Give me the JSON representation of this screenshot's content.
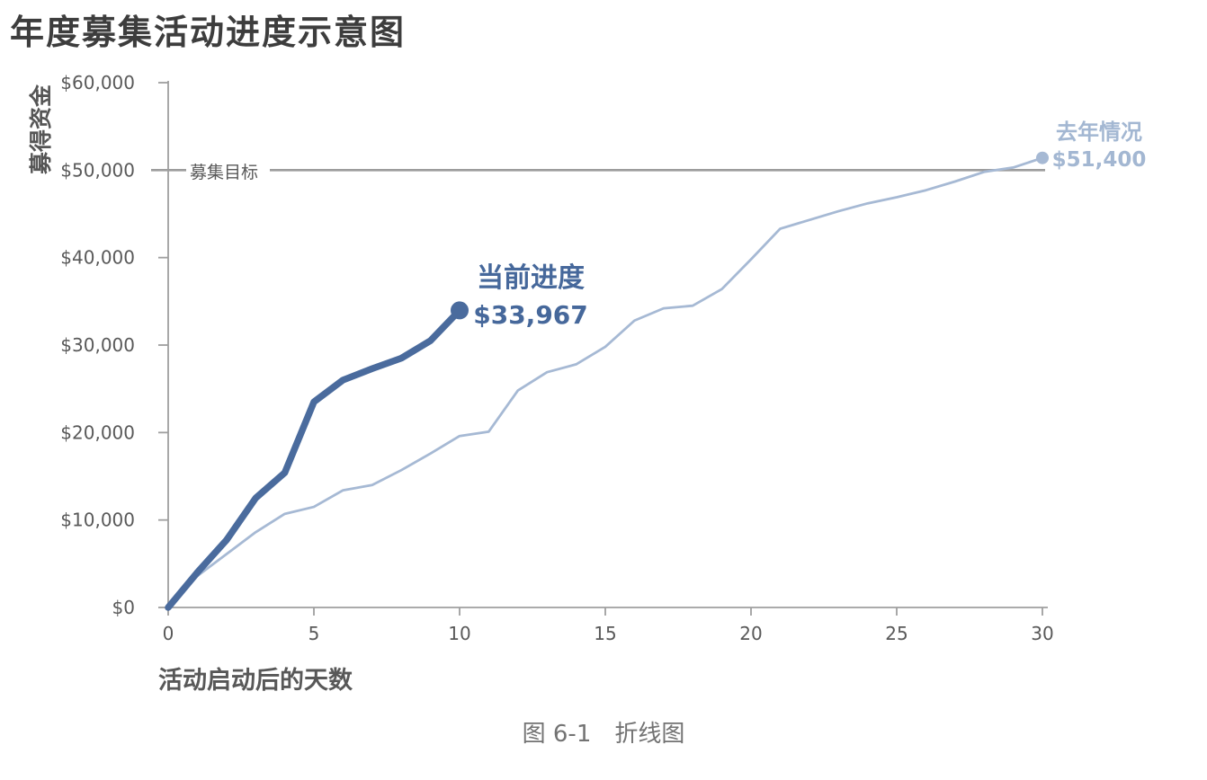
{
  "chart_data": {
    "type": "line",
    "title": "年度募集活动进度示意图",
    "ylabel": "募得资金",
    "xlabel": "活动启动后的天数",
    "caption": "图 6-1　折线图",
    "xlim": [
      0,
      30
    ],
    "ylim": [
      0,
      60000
    ],
    "x_ticks": [
      0,
      5,
      10,
      15,
      20,
      25,
      30
    ],
    "y_ticks": [
      0,
      10000,
      20000,
      30000,
      40000,
      50000,
      60000
    ],
    "y_tick_labels": [
      "$0",
      "$10,000",
      "$20,000",
      "$30,000",
      "$40,000",
      "$50,000",
      "$60,000"
    ],
    "grid": false,
    "legend_position": "inline-annotations",
    "axis_color": "#9f9f9f",
    "text_color": "#595959",
    "goal_line": {
      "value": 50000,
      "label": "募集目标",
      "color": "#9c9c9c"
    },
    "series": [
      {
        "id": "current-progress",
        "name": "当前进度",
        "end_label": "$33,967",
        "end_value": 33967,
        "color": "#4a6b9d",
        "line_width": 7.5,
        "dot_radius": 10,
        "x": [
          0,
          1,
          2,
          3,
          4,
          5,
          6,
          7,
          8,
          9,
          10
        ],
        "values": [
          0,
          4000,
          7700,
          12500,
          15400,
          23500,
          26000,
          27300,
          28500,
          30500,
          33967
        ]
      },
      {
        "id": "last-year",
        "name": "去年情况",
        "end_label": "$51,400",
        "end_value": 51400,
        "color": "#a6b9d4",
        "line_width": 2.8,
        "dot_radius": 7,
        "x": [
          0,
          1,
          2,
          3,
          4,
          5,
          6,
          7,
          8,
          9,
          10,
          11,
          12,
          13,
          14,
          15,
          16,
          17,
          18,
          19,
          20,
          21,
          22,
          23,
          24,
          25,
          26,
          27,
          28,
          29,
          30
        ],
        "values": [
          0,
          3600,
          6100,
          8600,
          10700,
          11500,
          13400,
          14000,
          15700,
          17600,
          19600,
          20100,
          24800,
          26900,
          27800,
          29800,
          32800,
          34200,
          34500,
          36400,
          39800,
          43300,
          44300,
          45300,
          46200,
          46900,
          47700,
          48700,
          49800,
          50300,
          51400
        ]
      }
    ]
  }
}
